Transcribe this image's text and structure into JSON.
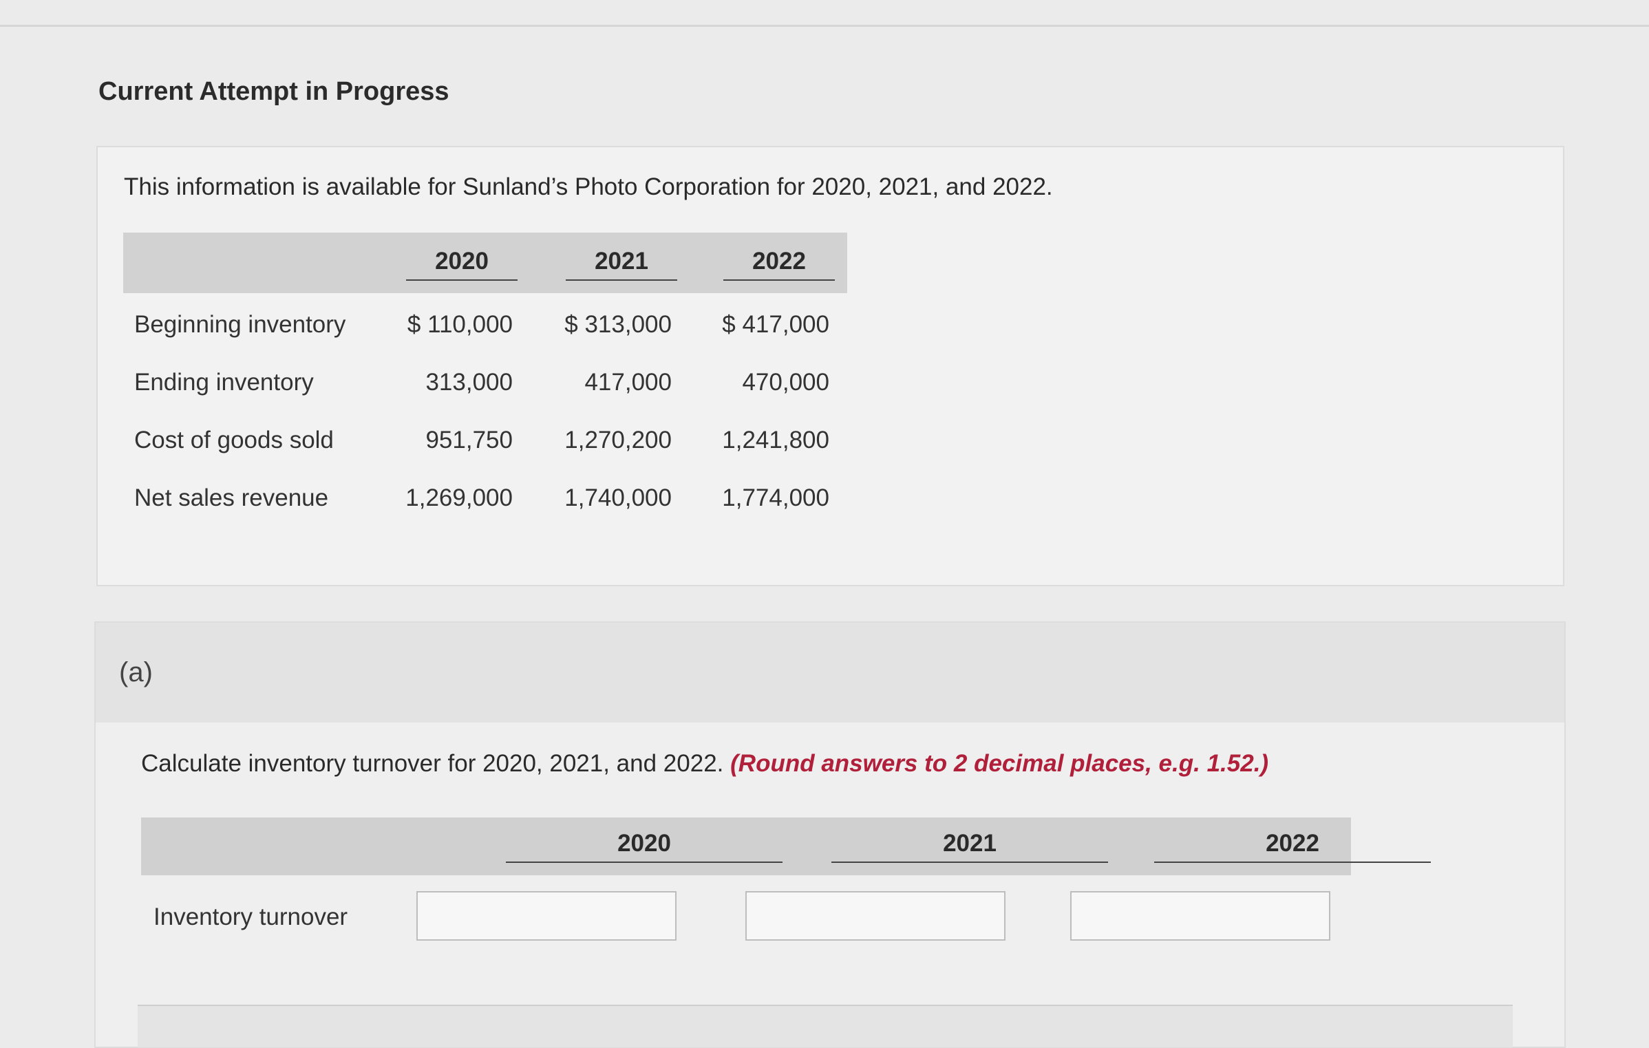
{
  "page": {
    "heading": "Current Attempt in Progress"
  },
  "info": {
    "text": "This information is available for Sunland’s Photo Corporation for 2020, 2021, and 2022.",
    "years": [
      "2020",
      "2021",
      "2022"
    ],
    "rows": [
      {
        "label": "Beginning inventory",
        "values": [
          "$ 110,000",
          "$ 313,000",
          "$ 417,000"
        ]
      },
      {
        "label": "Ending inventory",
        "values": [
          "313,000",
          "417,000",
          "470,000"
        ]
      },
      {
        "label": "Cost of goods sold",
        "values": [
          "951,750",
          "1,270,200",
          "1,241,800"
        ]
      },
      {
        "label": "Net sales revenue",
        "values": [
          "1,269,000",
          "1,740,000",
          "1,774,000"
        ]
      }
    ]
  },
  "part_a": {
    "letter": "(a)",
    "question": "Calculate inventory turnover for 2020, 2021, and 2022.",
    "note": "(Round answers to 2 decimal places, e.g. 1.52.)",
    "years": [
      "2020",
      "2021",
      "2022"
    ],
    "row_label": "Inventory turnover",
    "inputs": [
      "",
      "",
      ""
    ]
  }
}
